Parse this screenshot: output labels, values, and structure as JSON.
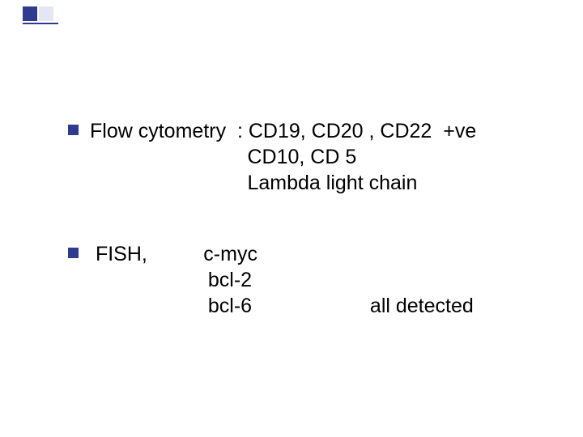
{
  "accent": {
    "primary_color": "#2e3b8f",
    "secondary_color": "#c8cde8"
  },
  "content": {
    "font_size_pt": 25,
    "text_color": "#000000",
    "background_color": "#ffffff",
    "bullets": [
      {
        "lines": [
          "Flow cytometry  : CD19, CD20 , CD22  +ve",
          "                            CD10, CD 5",
          "                            Lambda light chain"
        ]
      },
      {
        "lines": [
          " FISH,          c-myc",
          "                     bcl-2",
          "                     bcl-6                     all detected"
        ]
      }
    ]
  }
}
